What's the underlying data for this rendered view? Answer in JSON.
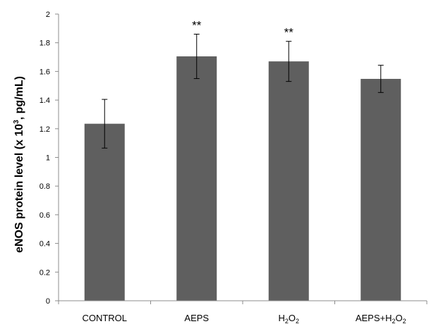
{
  "chart_data": {
    "type": "bar",
    "categories": [
      {
        "base": "CONTROL",
        "sub": "",
        "tail": ""
      },
      {
        "base": "AEPS",
        "sub": "",
        "tail": ""
      },
      {
        "base": "H",
        "sub": "2",
        "tail": "O",
        "sub2": "2"
      },
      {
        "base": "AEPS+H",
        "sub": "2",
        "tail": "O",
        "sub2": "2"
      }
    ],
    "values": [
      1.235,
      1.705,
      1.67,
      1.548
    ],
    "errors": [
      0.17,
      0.155,
      0.14,
      0.095
    ],
    "annotations": [
      "",
      "**",
      "**",
      ""
    ],
    "ylabel": {
      "prefix": "eNOS protein level (x 10",
      "sup": "3",
      "suffix": ", pg/mL)"
    },
    "xlabel": "",
    "ylim": [
      0,
      2
    ],
    "yticks": [
      0,
      0.2,
      0.4,
      0.6,
      0.8,
      1,
      1.2,
      1.4,
      1.6,
      1.8,
      2
    ],
    "ytick_labels": [
      "0",
      "0.2",
      "0.4",
      "0.6",
      "0.8",
      "1",
      "1.2",
      "1.4",
      "1.6",
      "1.8",
      "2"
    ],
    "grid": false,
    "bar_color": "#5f5f5f",
    "axis_color": "#8c8c8c"
  }
}
